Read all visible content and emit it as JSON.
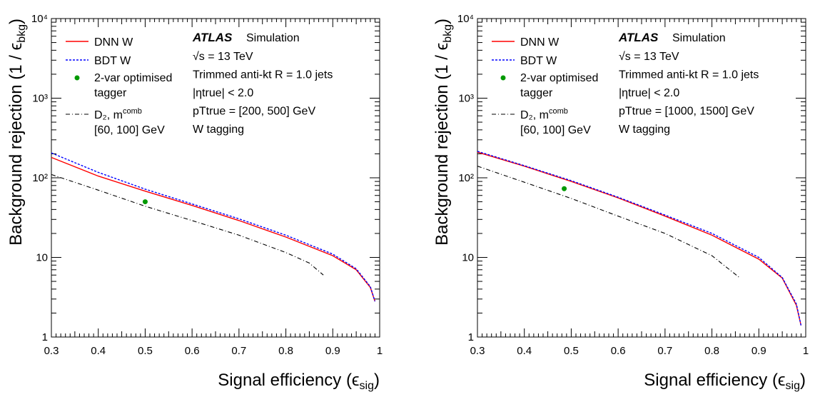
{
  "chart_data": [
    {
      "type": "line",
      "xlabel": "Signal efficiency (ϵ",
      "xlabel_sub": "sig",
      "ylabel": "Background rejection (1 / ϵ",
      "ylabel_sub": "bkg",
      "xlim": [
        0.3,
        1.0
      ],
      "ylim": [
        1,
        10000
      ],
      "yscale": "log",
      "grid": false,
      "legend_position": "top-left",
      "x_ticks": [
        "0.3",
        "0.4",
        "0.5",
        "0.6",
        "0.7",
        "0.8",
        "0.9",
        "1"
      ],
      "y_ticks": [
        "1",
        "10",
        "10²",
        "10³",
        "10⁴"
      ],
      "atlas_label": "ATLAS",
      "atlas_sub": "Simulation",
      "annotations": [
        "√s = 13 TeV",
        "Trimmed anti-kt R = 1.0 jets",
        "|ηtrue| < 2.0",
        "pTtrue = [200, 500] GeV",
        "W tagging"
      ],
      "series": [
        {
          "name": "DNN W",
          "color": "#ff0000",
          "style": "solid",
          "x": [
            0.3,
            0.4,
            0.5,
            0.6,
            0.7,
            0.8,
            0.9,
            0.95,
            0.98,
            0.99
          ],
          "y": [
            180,
            105,
            68,
            45,
            29,
            18,
            10.5,
            7,
            4.2,
            2.8
          ]
        },
        {
          "name": "BDT W",
          "color": "#0000ff",
          "style": "dotted",
          "x": [
            0.3,
            0.4,
            0.5,
            0.6,
            0.7,
            0.8,
            0.9,
            0.95,
            0.98,
            0.99
          ],
          "y": [
            205,
            117,
            72,
            47,
            30.5,
            19,
            11,
            7.2,
            4.3,
            2.8
          ]
        },
        {
          "name": "D2, mcomb [60, 100] GeV",
          "color": "#000000",
          "style": "dashdot",
          "x": [
            0.3,
            0.4,
            0.5,
            0.6,
            0.7,
            0.8,
            0.85,
            0.88
          ],
          "y": [
            110,
            70,
            44,
            29,
            19,
            11.5,
            8.5,
            6
          ]
        }
      ],
      "points": [
        {
          "name": "2-var optimised tagger",
          "color": "#009900",
          "x": 0.5,
          "y": 50
        }
      ]
    },
    {
      "type": "line",
      "xlabel": "Signal efficiency (ϵ",
      "xlabel_sub": "sig",
      "ylabel": "Background rejection (1 / ϵ",
      "ylabel_sub": "bkg",
      "xlim": [
        0.3,
        1.0
      ],
      "ylim": [
        1,
        10000
      ],
      "yscale": "log",
      "grid": false,
      "legend_position": "top-left",
      "x_ticks": [
        "0.3",
        "0.4",
        "0.5",
        "0.6",
        "0.7",
        "0.8",
        "0.9",
        "1"
      ],
      "y_ticks": [
        "1",
        "10",
        "10²",
        "10³",
        "10⁴"
      ],
      "atlas_label": "ATLAS",
      "atlas_sub": "Simulation",
      "annotations": [
        "√s = 13 TeV",
        "Trimmed anti-kt R = 1.0 jets",
        "|ηtrue| < 2.0",
        "pTtrue = [1000, 1500] GeV",
        "W tagging"
      ],
      "series": [
        {
          "name": "DNN W",
          "color": "#ff0000",
          "style": "solid",
          "x": [
            0.3,
            0.4,
            0.5,
            0.6,
            0.7,
            0.8,
            0.9,
            0.95,
            0.98,
            0.99
          ],
          "y": [
            210,
            140,
            90,
            56,
            33,
            19,
            9.5,
            5.5,
            2.5,
            1.4
          ]
        },
        {
          "name": "BDT W",
          "color": "#0000ff",
          "style": "dotted",
          "x": [
            0.3,
            0.4,
            0.5,
            0.6,
            0.7,
            0.8,
            0.9,
            0.95,
            0.98,
            0.99
          ],
          "y": [
            215,
            142,
            92,
            57,
            34,
            20,
            10,
            5.6,
            2.6,
            1.4
          ]
        },
        {
          "name": "D2, mcomb [60, 100] GeV",
          "color": "#000000",
          "style": "dashdot",
          "x": [
            0.3,
            0.4,
            0.5,
            0.6,
            0.7,
            0.8,
            0.86
          ],
          "y": [
            140,
            88,
            55,
            33,
            20,
            10.5,
            5.5
          ]
        }
      ],
      "points": [
        {
          "name": "2-var optimised tagger",
          "color": "#009900",
          "x": 0.485,
          "y": 73
        }
      ]
    }
  ],
  "legend": {
    "dnn": "DNN W",
    "bdt": "BDT W",
    "twovar_line1": "2-var optimised",
    "twovar_line2": "tagger",
    "d2_line1": "D₂, m",
    "d2_sup": "comb",
    "d2_line2": "[60, 100] GeV"
  }
}
